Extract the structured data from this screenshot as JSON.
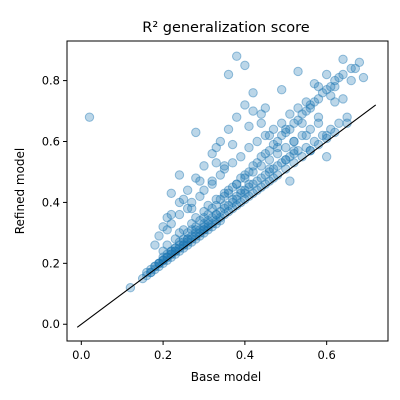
{
  "chart_data": {
    "type": "scatter",
    "title": "R² generalization score",
    "xlabel": "Base model",
    "ylabel": "Refined model",
    "xlim": [
      -0.035,
      0.75
    ],
    "ylim": [
      -0.055,
      0.93
    ],
    "xticks": [
      0.0,
      0.2,
      0.4,
      0.6
    ],
    "xtick_labels": [
      "0.0",
      "0.2",
      "0.4",
      "0.6"
    ],
    "yticks": [
      0.0,
      0.2,
      0.4,
      0.6,
      0.8
    ],
    "ytick_labels": [
      "0.0",
      "0.2",
      "0.4",
      "0.6",
      "0.8"
    ],
    "grid": false,
    "legend": false,
    "colors": {
      "points": "#1f77b4",
      "reference_line": "#000000"
    },
    "reference_line": {
      "x": [
        -0.01,
        0.72
      ],
      "y": [
        -0.01,
        0.72
      ]
    },
    "series": [
      {
        "x": [
          0.02,
          0.12,
          0.15,
          0.16,
          0.17,
          0.17,
          0.18,
          0.18,
          0.19,
          0.19,
          0.2,
          0.2,
          0.21,
          0.21,
          0.22,
          0.22,
          0.23,
          0.23,
          0.24,
          0.24,
          0.25,
          0.25,
          0.26,
          0.26,
          0.27,
          0.27,
          0.28,
          0.28,
          0.29,
          0.29,
          0.3,
          0.3,
          0.31,
          0.31,
          0.32,
          0.32,
          0.33,
          0.33,
          0.34,
          0.34,
          0.35,
          0.36,
          0.37,
          0.38,
          0.39,
          0.4,
          0.41,
          0.42,
          0.43,
          0.44,
          0.45,
          0.46,
          0.47,
          0.48,
          0.5,
          0.52,
          0.54,
          0.56,
          0.58,
          0.6,
          0.62,
          0.65,
          0.17,
          0.18,
          0.19,
          0.2,
          0.2,
          0.21,
          0.22,
          0.22,
          0.23,
          0.23,
          0.24,
          0.25,
          0.25,
          0.26,
          0.26,
          0.27,
          0.28,
          0.28,
          0.29,
          0.3,
          0.3,
          0.31,
          0.31,
          0.32,
          0.33,
          0.33,
          0.34,
          0.35,
          0.35,
          0.36,
          0.37,
          0.37,
          0.38,
          0.38,
          0.39,
          0.4,
          0.4,
          0.41,
          0.41,
          0.42,
          0.43,
          0.44,
          0.45,
          0.46,
          0.47,
          0.48,
          0.49,
          0.5,
          0.51,
          0.52,
          0.53,
          0.55,
          0.57,
          0.59,
          0.61,
          0.63,
          0.65,
          0.2,
          0.21,
          0.23,
          0.24,
          0.25,
          0.27,
          0.28,
          0.3,
          0.31,
          0.33,
          0.35,
          0.36,
          0.38,
          0.4,
          0.42,
          0.44,
          0.46,
          0.48,
          0.5,
          0.52,
          0.54,
          0.56,
          0.58,
          0.18,
          0.19,
          0.21,
          0.22,
          0.24,
          0.26,
          0.27,
          0.29,
          0.3,
          0.32,
          0.34,
          0.35,
          0.37,
          0.39,
          0.41,
          0.43,
          0.45,
          0.47,
          0.49,
          0.51,
          0.53,
          0.55,
          0.16,
          0.19,
          0.2,
          0.21,
          0.22,
          0.23,
          0.24,
          0.25,
          0.26,
          0.27,
          0.28,
          0.29,
          0.3,
          0.31,
          0.32,
          0.33,
          0.34,
          0.35,
          0.36,
          0.37,
          0.38,
          0.39,
          0.4,
          0.41,
          0.42,
          0.43,
          0.44,
          0.45,
          0.46,
          0.47,
          0.48,
          0.49,
          0.5,
          0.51,
          0.52,
          0.53,
          0.54,
          0.55,
          0.56,
          0.57,
          0.58,
          0.59,
          0.6,
          0.61,
          0.62,
          0.63,
          0.64,
          0.66,
          0.68,
          0.2,
          0.22,
          0.24,
          0.26,
          0.28,
          0.3,
          0.32,
          0.34,
          0.36,
          0.38,
          0.4,
          0.42,
          0.44,
          0.46,
          0.48,
          0.5,
          0.52,
          0.54,
          0.56,
          0.58,
          0.6,
          0.62,
          0.64,
          0.66,
          0.21,
          0.25,
          0.29,
          0.33,
          0.37,
          0.41,
          0.45,
          0.49,
          0.53,
          0.57,
          0.61,
          0.36,
          0.38,
          0.4,
          0.42,
          0.44,
          0.5,
          0.52,
          0.55,
          0.58,
          0.6,
          0.62,
          0.64,
          0.67,
          0.69,
          0.22,
          0.24,
          0.27,
          0.3,
          0.32,
          0.35,
          0.28,
          0.33,
          0.39,
          0.46,
          0.51,
          0.56,
          0.6
        ],
        "y": [
          0.68,
          0.12,
          0.15,
          0.16,
          0.17,
          0.18,
          0.18,
          0.19,
          0.19,
          0.2,
          0.2,
          0.21,
          0.21,
          0.22,
          0.22,
          0.23,
          0.23,
          0.24,
          0.24,
          0.25,
          0.25,
          0.26,
          0.26,
          0.27,
          0.27,
          0.28,
          0.28,
          0.29,
          0.29,
          0.3,
          0.3,
          0.31,
          0.31,
          0.32,
          0.32,
          0.33,
          0.33,
          0.34,
          0.34,
          0.35,
          0.36,
          0.37,
          0.38,
          0.39,
          0.4,
          0.41,
          0.42,
          0.43,
          0.44,
          0.45,
          0.46,
          0.47,
          0.48,
          0.49,
          0.51,
          0.53,
          0.55,
          0.57,
          0.59,
          0.61,
          0.63,
          0.66,
          0.17,
          0.19,
          0.2,
          0.21,
          0.22,
          0.22,
          0.23,
          0.24,
          0.24,
          0.25,
          0.26,
          0.26,
          0.27,
          0.28,
          0.28,
          0.29,
          0.3,
          0.31,
          0.31,
          0.32,
          0.33,
          0.33,
          0.34,
          0.35,
          0.36,
          0.36,
          0.37,
          0.38,
          0.39,
          0.39,
          0.4,
          0.41,
          0.41,
          0.42,
          0.43,
          0.43,
          0.44,
          0.45,
          0.46,
          0.46,
          0.47,
          0.48,
          0.49,
          0.5,
          0.51,
          0.52,
          0.53,
          0.54,
          0.55,
          0.56,
          0.57,
          0.58,
          0.6,
          0.62,
          0.64,
          0.66,
          0.68,
          0.24,
          0.26,
          0.28,
          0.3,
          0.31,
          0.33,
          0.35,
          0.37,
          0.39,
          0.41,
          0.43,
          0.44,
          0.46,
          0.48,
          0.5,
          0.52,
          0.54,
          0.56,
          0.58,
          0.6,
          0.62,
          0.64,
          0.66,
          0.26,
          0.29,
          0.31,
          0.33,
          0.36,
          0.38,
          0.4,
          0.42,
          0.44,
          0.47,
          0.49,
          0.51,
          0.53,
          0.55,
          0.58,
          0.6,
          0.62,
          0.64,
          0.66,
          0.69,
          0.71,
          0.73,
          0.17,
          0.2,
          0.21,
          0.23,
          0.24,
          0.25,
          0.27,
          0.28,
          0.3,
          0.31,
          0.32,
          0.34,
          0.35,
          0.36,
          0.38,
          0.39,
          0.41,
          0.42,
          0.43,
          0.45,
          0.46,
          0.48,
          0.49,
          0.5,
          0.52,
          0.53,
          0.55,
          0.56,
          0.57,
          0.59,
          0.6,
          0.62,
          0.63,
          0.64,
          0.66,
          0.67,
          0.69,
          0.7,
          0.71,
          0.73,
          0.74,
          0.76,
          0.77,
          0.78,
          0.8,
          0.81,
          0.82,
          0.84,
          0.86,
          0.32,
          0.36,
          0.4,
          0.44,
          0.48,
          0.52,
          0.56,
          0.6,
          0.64,
          0.68,
          0.72,
          0.7,
          0.66,
          0.62,
          0.58,
          0.54,
          0.6,
          0.66,
          0.72,
          0.78,
          0.82,
          0.78,
          0.74,
          0.8,
          0.35,
          0.41,
          0.47,
          0.53,
          0.59,
          0.65,
          0.71,
          0.77,
          0.83,
          0.79,
          0.75,
          0.82,
          0.88,
          0.85,
          0.76,
          0.69,
          0.64,
          0.57,
          0.62,
          0.68,
          0.55,
          0.73,
          0.87,
          0.84,
          0.81,
          0.43,
          0.49,
          0.38,
          0.31,
          0.46,
          0.52,
          0.63,
          0.58,
          0.44,
          0.51,
          0.47,
          0.57,
          0.62
        ]
      }
    ]
  }
}
